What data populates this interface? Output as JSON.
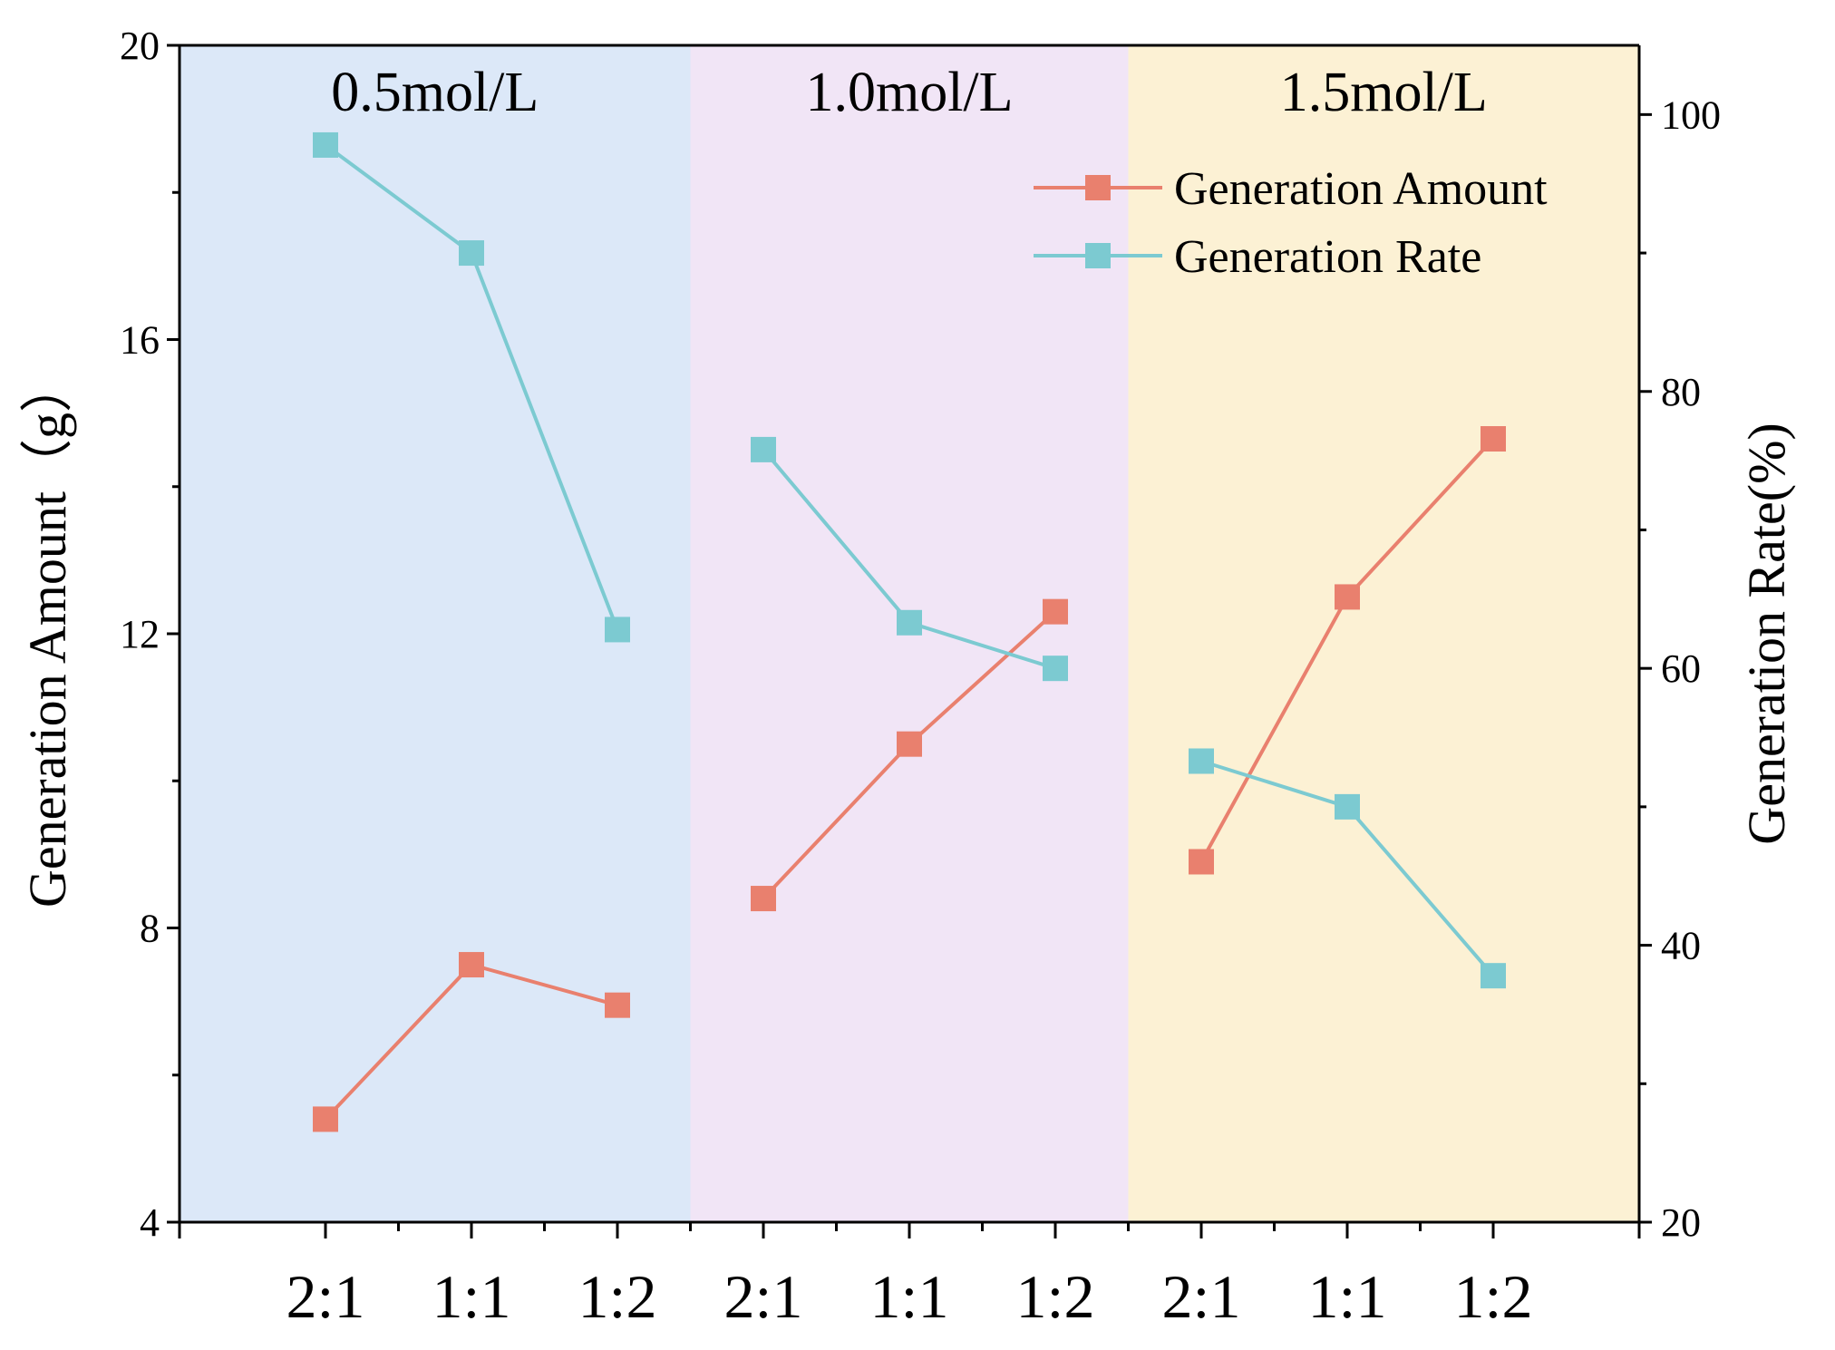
{
  "chart_data": {
    "type": "line",
    "categories": [
      "2:1",
      "1:1",
      "1:2",
      "2:1",
      "1:1",
      "1:2",
      "2:1",
      "1:1",
      "1:2"
    ],
    "regions": [
      {
        "label": "0.5mol/L",
        "color": "#dce8f8",
        "start_index": 0,
        "end_index": 2
      },
      {
        "label": "1.0mol/L",
        "color": "#f1e5f6",
        "start_index": 3,
        "end_index": 5
      },
      {
        "label": "1.5mol/L",
        "color": "#fcf1d4",
        "start_index": 6,
        "end_index": 8
      }
    ],
    "series": [
      {
        "name": "Generation Amount",
        "axis": "left",
        "color": "#e9806e",
        "groups": [
          [
            5.4,
            7.5,
            6.95
          ],
          [
            8.4,
            10.5,
            12.3
          ],
          [
            8.9,
            12.5,
            14.65
          ]
        ]
      },
      {
        "name": "Generation Rate",
        "axis": "right",
        "color": "#7ccad1",
        "groups": [
          [
            97.8,
            90.0,
            62.8
          ],
          [
            75.8,
            63.3,
            60.0
          ],
          [
            53.3,
            50.0,
            37.8
          ]
        ]
      }
    ],
    "left_axis": {
      "label": "Generation Amount（g）",
      "lim": [
        4,
        20
      ],
      "ticks": [
        4,
        8,
        12,
        16,
        20
      ]
    },
    "right_axis": {
      "label": "Generation Rate(%)",
      "lim": [
        20,
        105
      ],
      "ticks": [
        20,
        40,
        60,
        80,
        100
      ]
    },
    "legend_position": "top-right"
  }
}
